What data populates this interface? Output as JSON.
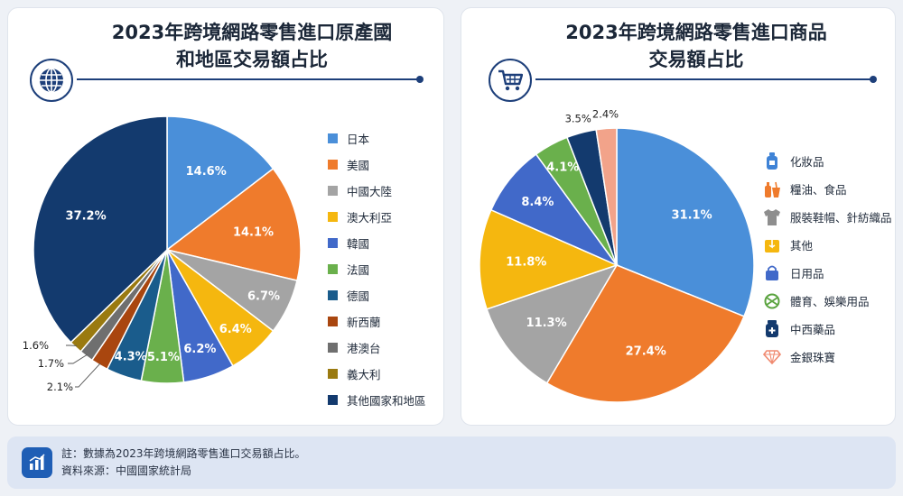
{
  "footer": {
    "note": "註：數據為2023年跨境網路零售進口交易額占比。",
    "source": "資料來源：中國國家統計局"
  },
  "icons": {
    "left_badge": "globe-icon",
    "right_badge": "shopping-cart-icon",
    "footer": "bar-chart-icon"
  },
  "chart_data": [
    {
      "type": "pie",
      "title": [
        "2023年跨境網路零售進口原產國",
        "和地區交易額占比"
      ],
      "legend_position": "right",
      "slices": [
        {
          "label": "日本",
          "value": 14.6,
          "value_label": "14.6%",
          "color": "#4a8fd9"
        },
        {
          "label": "美國",
          "value": 14.1,
          "value_label": "14.1%",
          "color": "#ef7b2c"
        },
        {
          "label": "中國大陸",
          "value": 6.7,
          "value_label": "6.7%",
          "color": "#a4a4a4"
        },
        {
          "label": "澳大利亞",
          "value": 6.4,
          "value_label": "6.4%",
          "color": "#f5b70f"
        },
        {
          "label": "韓國",
          "value": 6.2,
          "value_label": "6.2%",
          "color": "#4169c9"
        },
        {
          "label": "法國",
          "value": 5.1,
          "value_label": "5.1%",
          "color": "#6ab04c"
        },
        {
          "label": "德國",
          "value": 4.3,
          "value_label": "4.3%",
          "color": "#1a5c8c"
        },
        {
          "label": "新西蘭",
          "value": 2.1,
          "value_label": "2.1%",
          "color": "#a9460f"
        },
        {
          "label": "港澳台",
          "value": 1.7,
          "value_label": "1.7%",
          "color": "#6f6f6f"
        },
        {
          "label": "義大利",
          "value": 1.6,
          "value_label": "1.6%",
          "color": "#9a7a10"
        },
        {
          "label": "其他國家和地區",
          "value": 37.2,
          "value_label": "37.2%",
          "color": "#133a6e"
        }
      ]
    },
    {
      "type": "pie",
      "title": [
        "2023年跨境網路零售進口商品",
        "交易額占比"
      ],
      "legend_position": "right",
      "slices": [
        {
          "label": "化妝品",
          "value": 31.1,
          "value_label": "31.1%",
          "color": "#4a8fd9",
          "icon": "cosmetics-bottle-icon"
        },
        {
          "label": "糧油、食品",
          "value": 27.4,
          "value_label": "27.4%",
          "color": "#ef7b2c",
          "icon": "food-icon"
        },
        {
          "label": "服裝鞋帽、針紡織品",
          "value": 11.3,
          "value_label": "11.3%",
          "color": "#a4a4a4",
          "icon": "tshirt-icon"
        },
        {
          "label": "其他",
          "value": 11.8,
          "value_label": "11.8%",
          "color": "#f5b70f",
          "icon": "box-icon"
        },
        {
          "label": "日用品",
          "value": 8.4,
          "value_label": "8.4%",
          "color": "#4169c9",
          "icon": "shopping-bag-icon"
        },
        {
          "label": "體育、娛樂用品",
          "value": 4.1,
          "value_label": "4.1%",
          "color": "#6ab04c",
          "icon": "ball-icon"
        },
        {
          "label": "中西藥品",
          "value": 3.5,
          "value_label": "3.5%",
          "color": "#133a6e",
          "icon": "medicine-icon"
        },
        {
          "label": "金銀珠寶",
          "value": 2.4,
          "value_label": "2.4%",
          "color": "#f2a38a",
          "icon": "diamond-icon"
        }
      ]
    }
  ]
}
